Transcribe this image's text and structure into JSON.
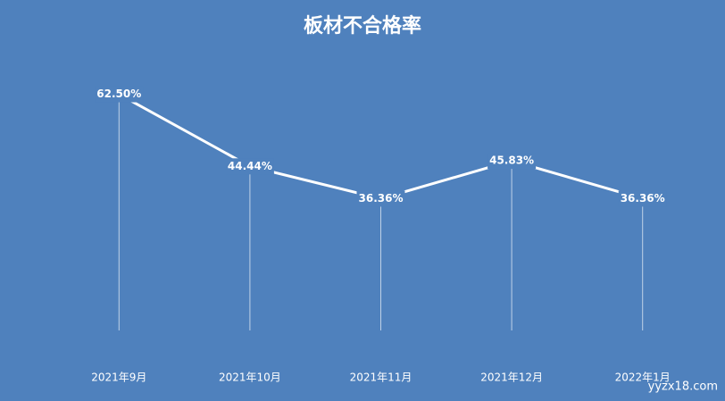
{
  "chart_data": {
    "type": "line",
    "title": "板材不合格率",
    "categories": [
      "2021年9月",
      "2021年10月",
      "2021年11月",
      "2021年12月",
      "2022年1月"
    ],
    "series": [
      {
        "name": "板材不合格率",
        "color": "#ffffff",
        "values": [
          62.5,
          44.44,
          36.36,
          45.83,
          36.36
        ],
        "value_labels": [
          "62.50%",
          "44.44%",
          "36.36%",
          "45.83%",
          "36.36%"
        ]
      }
    ],
    "ylim": [
      0,
      70
    ],
    "background": "#4f81bd",
    "drop_lines": true,
    "watermark": "yyzx18.com"
  }
}
